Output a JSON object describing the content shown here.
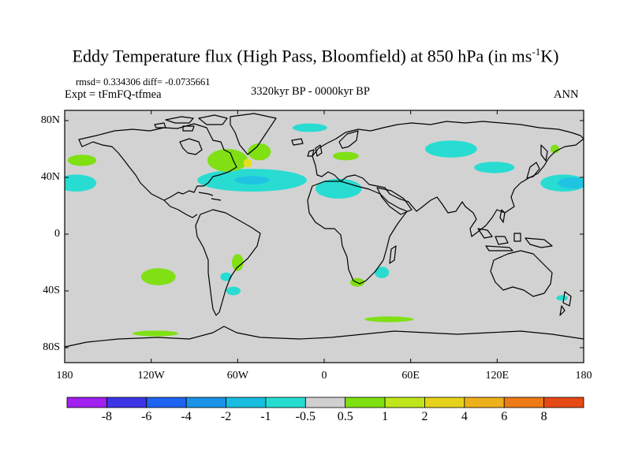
{
  "title": {
    "main": "Eddy Temperature flux (High Pass, Bloomfield) at 850 hPa (in ms",
    "sup": "-1",
    "unit_end": "K)"
  },
  "stats": "rmsd= 0.334306  diff= -0.0735661",
  "expt": "Expt = tFmFQ-tfmea",
  "period": "3320kyr BP - 0000kyr BP",
  "season": "ANN",
  "lat_labels": [
    {
      "text": "80N",
      "lat": 80
    },
    {
      "text": "40N",
      "lat": 40
    },
    {
      "text": "0",
      "lat": 0
    },
    {
      "text": "40S",
      "lat": -40
    },
    {
      "text": "80S",
      "lat": -80
    }
  ],
  "lon_labels": [
    {
      "text": "180",
      "lon": -180
    },
    {
      "text": "120W",
      "lon": -120
    },
    {
      "text": "60W",
      "lon": -60
    },
    {
      "text": "0",
      "lon": 0
    },
    {
      "text": "60E",
      "lon": 60
    },
    {
      "text": "120E",
      "lon": 120
    },
    {
      "text": "180",
      "lon": 180
    }
  ],
  "colorbar": {
    "colors": [
      "#a020f0",
      "#3c34e6",
      "#1e62f0",
      "#1a92e8",
      "#18bde0",
      "#25dcd0",
      "#d0d0d0",
      "#7ee010",
      "#bfe61a",
      "#e6d21a",
      "#eeb01a",
      "#ec7a16",
      "#e64a14"
    ],
    "labels": [
      "-8",
      "-6",
      "-4",
      "-2",
      "-1",
      "-0.5",
      "0.5",
      "1",
      "2",
      "4",
      "6",
      "8"
    ]
  },
  "colors": {
    "land_ocean": "#d2d2d2",
    "cyan": "#28dcd2",
    "light_blue": "#20c4e2",
    "green": "#80e014",
    "yellow": "#e6e020",
    "coast": "#000000"
  },
  "anomalies": [
    {
      "lon": 166,
      "lat": 36,
      "rlon": 16,
      "rlat": 6,
      "level": "cyan"
    },
    {
      "lon": -172,
      "lat": 36,
      "rlon": 14,
      "rlat": 6,
      "level": "cyan"
    },
    {
      "lon": 172,
      "lat": 36,
      "rlon": 10,
      "rlat": 4,
      "level": "light_blue"
    },
    {
      "lon": -50,
      "lat": 38,
      "rlon": 38,
      "rlat": 8,
      "level": "cyan"
    },
    {
      "lon": -50,
      "lat": 38,
      "rlon": 12,
      "rlat": 3,
      "level": "light_blue"
    },
    {
      "lon": 10,
      "lat": 32,
      "rlon": 16,
      "rlat": 7,
      "level": "cyan"
    },
    {
      "lon": 88,
      "lat": 60,
      "rlon": 18,
      "rlat": 6,
      "level": "cyan"
    },
    {
      "lon": 118,
      "lat": 47,
      "rlon": 14,
      "rlat": 4,
      "level": "cyan"
    },
    {
      "lon": -10,
      "lat": 75,
      "rlon": 12,
      "rlat": 3,
      "level": "cyan"
    },
    {
      "lon": -67,
      "lat": 52,
      "rlon": 14,
      "rlat": 8,
      "level": "green"
    },
    {
      "lon": -45,
      "lat": 58,
      "rlon": 8,
      "rlat": 6,
      "level": "green"
    },
    {
      "lon": -53,
      "lat": 50,
      "rlon": 3,
      "rlat": 3,
      "level": "yellow"
    },
    {
      "lon": -168,
      "lat": 52,
      "rlon": 10,
      "rlat": 4,
      "level": "green"
    },
    {
      "lon": 15,
      "lat": 55,
      "rlon": 9,
      "rlat": 3,
      "level": "green"
    },
    {
      "lon": 160,
      "lat": 60,
      "rlon": 3,
      "rlat": 3,
      "level": "green"
    },
    {
      "lon": -115,
      "lat": -30,
      "rlon": 12,
      "rlat": 6,
      "level": "green"
    },
    {
      "lon": -60,
      "lat": -20,
      "rlon": 4,
      "rlat": 6,
      "level": "green"
    },
    {
      "lon": -68,
      "lat": -30,
      "rlon": 4,
      "rlat": 3,
      "level": "cyan"
    },
    {
      "lon": -63,
      "lat": -40,
      "rlon": 5,
      "rlat": 3,
      "level": "cyan"
    },
    {
      "lon": 23,
      "lat": -34,
      "rlon": 5,
      "rlat": 3,
      "level": "green"
    },
    {
      "lon": 40,
      "lat": -27,
      "rlon": 5,
      "rlat": 4,
      "level": "cyan"
    },
    {
      "lon": 45,
      "lat": -60,
      "rlon": 17,
      "rlat": 2,
      "level": "green"
    },
    {
      "lon": -117,
      "lat": -70,
      "rlon": 16,
      "rlat": 2,
      "level": "green"
    },
    {
      "lon": 165,
      "lat": -45,
      "rlon": 4,
      "rlat": 2,
      "level": "cyan"
    }
  ]
}
